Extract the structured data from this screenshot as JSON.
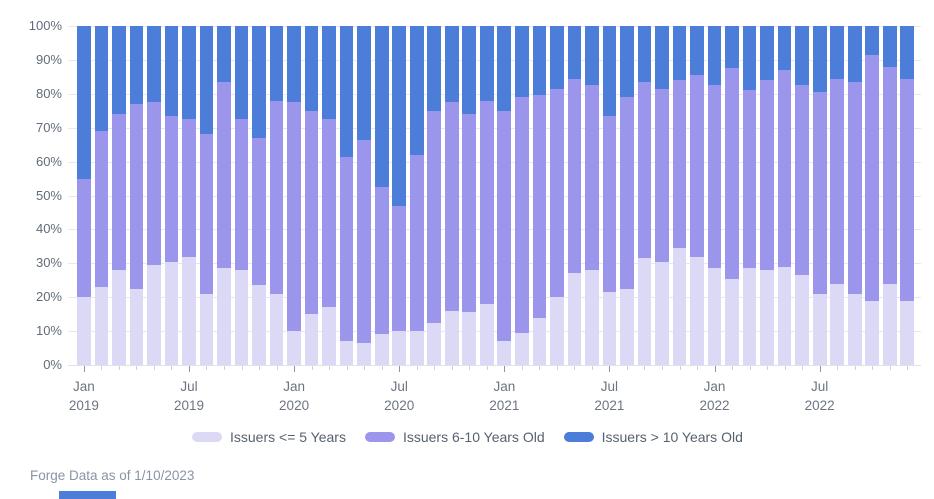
{
  "chart": {
    "y_axis_labels": [
      "100%",
      "90%",
      "80%",
      "70%",
      "60%",
      "50%",
      "40%",
      "30%",
      "20%",
      "10%",
      "0%"
    ],
    "footer": {
      "text": "Forge Data as of 1/10/2023"
    }
  },
  "chart_data": {
    "type": "bar",
    "stacked": true,
    "percent_total": 100,
    "title": "",
    "xlabel": "",
    "ylabel": "",
    "ylim": [
      0,
      100
    ],
    "grid": true,
    "legend_position": "bottom",
    "x": [
      "Jan 2019",
      "Feb 2019",
      "Mar 2019",
      "Apr 2019",
      "May 2019",
      "Jun 2019",
      "Jul 2019",
      "Aug 2019",
      "Sep 2019",
      "Oct 2019",
      "Nov 2019",
      "Dec 2019",
      "Jan 2020",
      "Feb 2020",
      "Mar 2020",
      "Apr 2020",
      "May 2020",
      "Jun 2020",
      "Jul 2020",
      "Aug 2020",
      "Sep 2020",
      "Oct 2020",
      "Nov 2020",
      "Dec 2020",
      "Jan 2021",
      "Feb 2021",
      "Mar 2021",
      "Apr 2021",
      "May 2021",
      "Jun 2021",
      "Jul 2021",
      "Aug 2021",
      "Sep 2021",
      "Oct 2021",
      "Nov 2021",
      "Dec 2021",
      "Jan 2022",
      "Feb 2022",
      "Mar 2022",
      "Apr 2022",
      "May 2022",
      "Jun 2022",
      "Jul 2022",
      "Aug 2022",
      "Sep 2022",
      "Oct 2022",
      "Nov 2022",
      "Dec 2022"
    ],
    "x_major_tick_labels": [
      "Jan 2019",
      "Jul 2019",
      "Jan 2020",
      "Jul 2020",
      "Jan 2021",
      "Jul 2021",
      "Jan 2022",
      "Jul 2022"
    ],
    "series": [
      {
        "name": "Issuers <= 5 Years",
        "color": "#dcd9f7",
        "values": [
          20,
          23,
          28,
          22.5,
          29.5,
          30.5,
          32,
          21,
          28.5,
          28,
          23.5,
          21,
          10,
          15,
          17,
          7,
          6.5,
          9,
          10,
          10,
          12.5,
          16,
          15.5,
          18,
          7,
          9.5,
          14,
          20,
          27,
          28,
          21.5,
          22.5,
          31.5,
          30.5,
          34.5,
          32,
          28.5,
          25.5,
          28.5,
          28,
          29,
          26.5,
          21,
          24,
          21,
          19,
          24,
          19
        ]
      },
      {
        "name": "Issuers 6-10 Years Old",
        "color": "#9b96ec",
        "values": [
          35,
          46,
          46,
          54.5,
          48,
          43,
          40.5,
          47,
          55,
          44.5,
          43.5,
          57,
          67.5,
          60,
          55.5,
          54.5,
          60,
          43.5,
          37,
          52,
          62.5,
          61.5,
          58.5,
          60,
          68,
          69.5,
          65.5,
          61.5,
          57.5,
          54.5,
          52,
          56.5,
          52,
          51,
          49.5,
          53.5,
          54,
          62,
          52.5,
          56,
          58,
          56,
          59.5,
          60.5,
          62.5,
          72.5,
          64,
          65.5
        ]
      },
      {
        "name": "Issuers > 10 Years Old",
        "color": "#4c7dd8",
        "values": [
          45,
          31,
          26,
          23,
          22.5,
          26.5,
          27.5,
          32,
          16.5,
          27.5,
          33,
          22,
          22.5,
          25,
          27.5,
          38.5,
          33.5,
          47.5,
          53,
          38,
          25,
          22.5,
          26,
          22,
          25,
          21,
          20.5,
          18.5,
          15.5,
          17.5,
          26.5,
          21,
          16.5,
          18.5,
          16,
          14.5,
          17.5,
          12.5,
          19,
          16,
          13,
          17.5,
          19.5,
          15.5,
          16.5,
          8.5,
          12,
          15.5
        ]
      }
    ]
  }
}
